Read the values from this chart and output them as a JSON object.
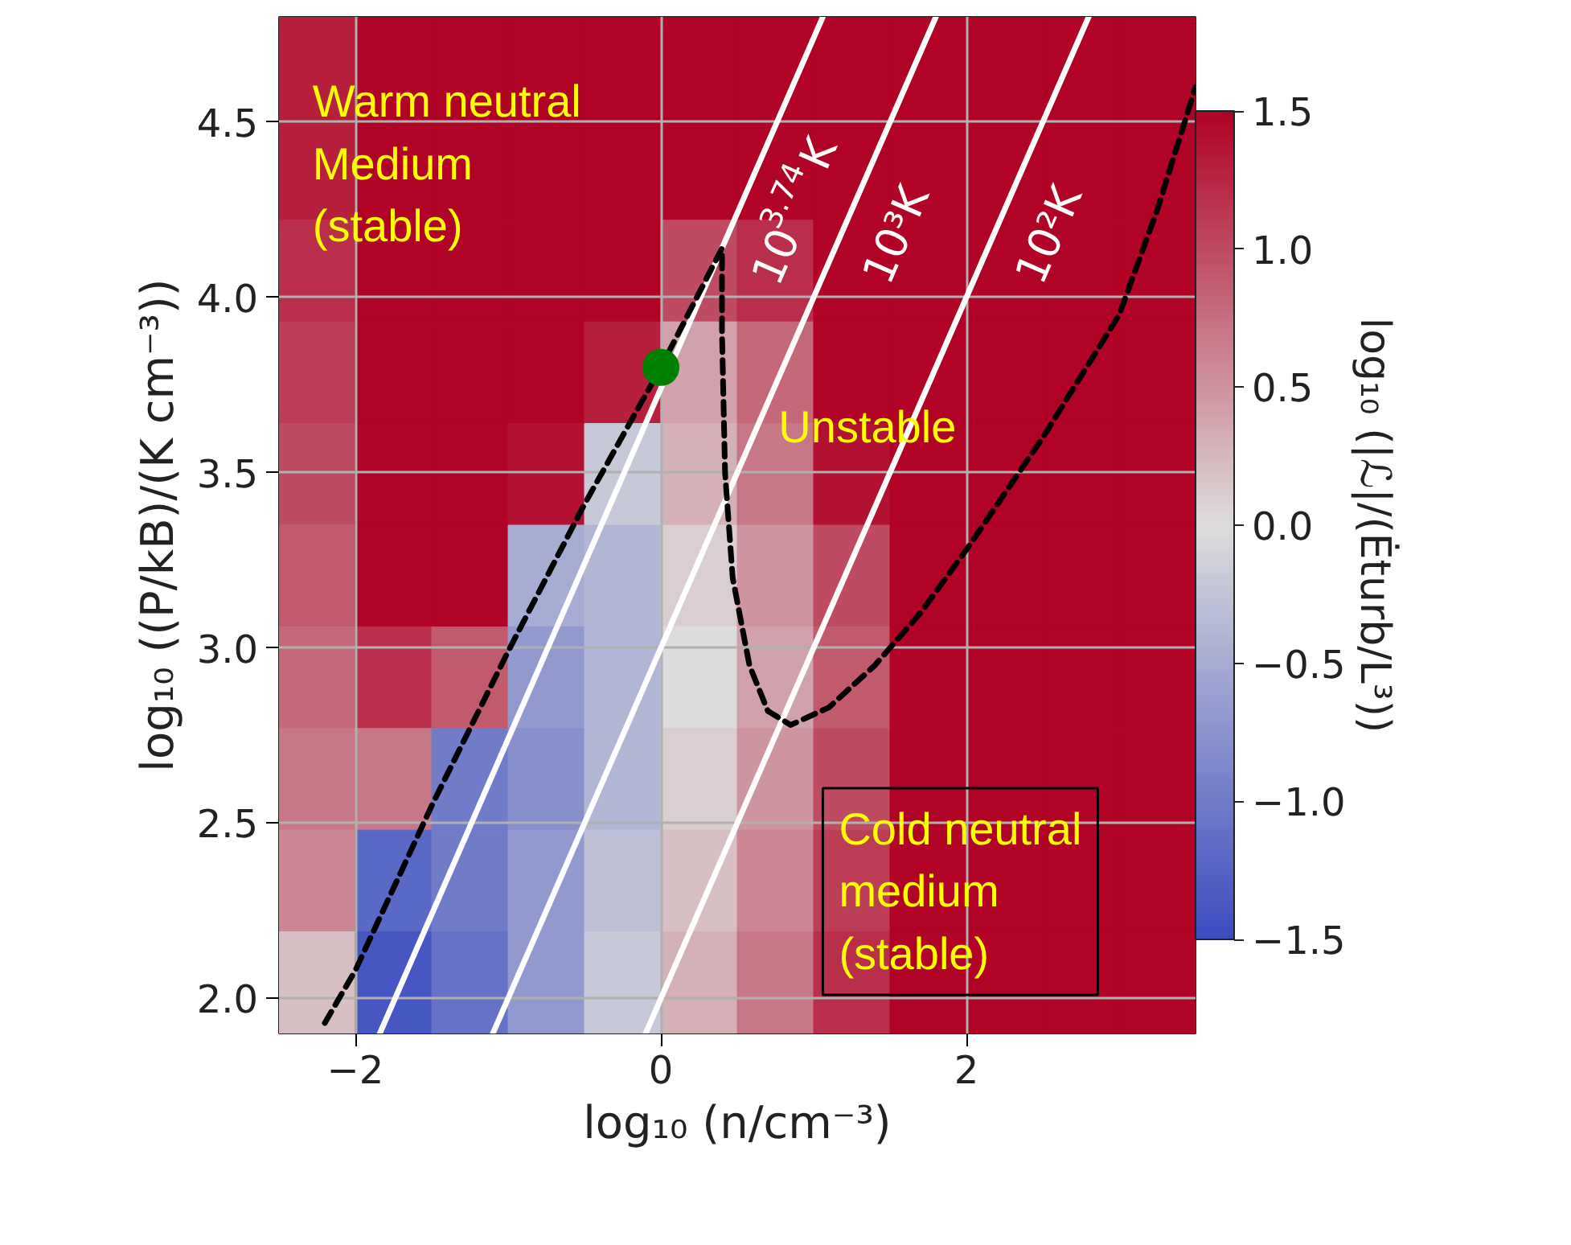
{
  "chart_data": [
    {
      "type": "line",
      "xlabel": "log₁₀ (n/cm⁻³)",
      "ylabel": "log₁₀ ((P/kB)/(K cm⁻³))",
      "xlim": [
        -2.5,
        3.5
      ],
      "ylim": [
        1.9,
        4.8
      ],
      "xticks": [
        {
          "value": -2,
          "label": "−2"
        },
        0,
        2
      ],
      "yticks": [
        {
          "value": 2,
          "label": "2.0"
        },
        2.5,
        {
          "value": 3,
          "label": "3.0"
        },
        3.5,
        {
          "value": 4,
          "label": "4.0"
        },
        4.5
      ],
      "grid": true,
      "series": [
        {
          "color": "#ffffff",
          "line_style": "solid",
          "name": "10$^{3.74}$K",
          "x": [
            -1.84,
            1.06
          ],
          "values": [
            1.9,
            4.8
          ]
        },
        {
          "color": "#ffffff",
          "line_style": "solid",
          "name": "10³K",
          "x": [
            -1.1,
            1.8
          ],
          "values": [
            1.9,
            4.8
          ]
        },
        {
          "color": "#ffffff",
          "line_style": "solid",
          "name": "10²K",
          "x": [
            -0.1,
            2.8
          ],
          "values": [
            1.9,
            4.8
          ]
        },
        {
          "color": "#000000",
          "line_style": "dashed",
          "x": [
            -2.2,
            -2.0,
            -1.5,
            -1.0,
            -0.5,
            0.0,
            0.2,
            0.4,
            0.4,
            0.42,
            0.47,
            0.58,
            0.7,
            0.85,
            1.1,
            1.4,
            1.7,
            2.0,
            2.5,
            3.0,
            3.25,
            3.5
          ],
          "values": [
            1.93,
            2.08,
            2.55,
            2.99,
            3.41,
            3.8,
            3.97,
            4.14,
            3.9,
            3.5,
            3.2,
            2.95,
            2.82,
            2.78,
            2.83,
            2.95,
            3.1,
            3.28,
            3.6,
            3.95,
            4.25,
            4.6
          ]
        },
        {
          "type": "scatter",
          "color": "#008000",
          "marker": "circle",
          "x": [
            0
          ],
          "values": [
            3.8
          ]
        }
      ],
      "annotations": [
        "Warm neutral\nMedium\n(stable)",
        "Unstable",
        "Cold neutral\n medium\n(stable)"
      ]
    },
    {
      "type": "heatmap",
      "colors": [
        "#3b4cc0",
        "#dddcdc",
        "#b00325"
      ],
      "categories": [
        null,
        null,
        null,
        null,
        null,
        null,
        null,
        null,
        null,
        null,
        null,
        null
      ],
      "y_categories": [
        null,
        null,
        null,
        null,
        null,
        null,
        null,
        null,
        null,
        null
      ],
      "clabel": "log₁₀ (|ℒ|/(Ėturb/L³))",
      "clim": [
        -1.5,
        1.5
      ],
      "cticks": [
        {
          "value": -1.5,
          "label": "−1.5"
        },
        {
          "value": -1,
          "label": "−1.0"
        },
        {
          "value": -0.5,
          "label": "−0.5"
        },
        {
          "value": 0,
          "label": "0.0"
        },
        0.5,
        {
          "value": 1,
          "label": "1.0"
        },
        1.5
      ],
      "cells": [
        [
          1.3,
          1.5,
          1.5,
          1.5,
          1.5,
          1.5,
          1.5,
          1.5,
          1.5,
          1.5,
          1.5,
          1.5
        ],
        [
          1.3,
          1.5,
          1.5,
          1.5,
          1.5,
          1.5,
          1.5,
          1.5,
          1.5,
          1.5,
          1.5,
          1.5
        ],
        [
          1.2,
          1.5,
          1.5,
          1.5,
          1.5,
          1.0,
          1.2,
          1.5,
          1.5,
          1.5,
          1.5,
          1.5
        ],
        [
          1.1,
          1.5,
          1.5,
          1.5,
          1.3,
          0.4,
          0.8,
          1.5,
          1.5,
          1.5,
          1.5,
          1.5
        ],
        [
          1.0,
          1.5,
          1.5,
          1.4,
          -0.2,
          0.3,
          0.7,
          1.4,
          1.5,
          1.5,
          1.5,
          1.5
        ],
        [
          0.9,
          1.5,
          1.5,
          -0.5,
          -0.4,
          0.1,
          0.5,
          1.0,
          1.5,
          1.5,
          1.5,
          1.5
        ],
        [
          0.8,
          1.2,
          0.9,
          -0.7,
          -0.4,
          0.0,
          0.4,
          0.9,
          1.5,
          1.5,
          1.5,
          1.5
        ],
        [
          0.7,
          0.7,
          -1.0,
          -0.8,
          -0.4,
          0.1,
          0.5,
          1.0,
          1.5,
          1.5,
          1.5,
          1.5
        ],
        [
          0.6,
          -1.2,
          -1.0,
          -0.7,
          -0.3,
          0.2,
          0.6,
          1.1,
          1.5,
          1.5,
          1.5,
          1.5
        ],
        [
          0.2,
          -1.4,
          -1.1,
          -0.7,
          -0.2,
          0.3,
          0.7,
          1.2,
          1.5,
          1.5,
          1.5,
          1.5
        ]
      ]
    }
  ]
}
